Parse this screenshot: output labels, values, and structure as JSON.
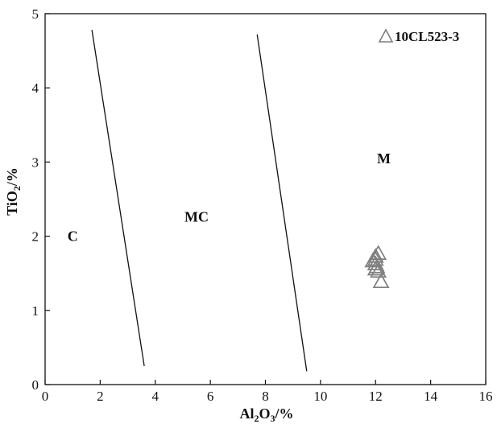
{
  "chart_data": {
    "type": "scatter",
    "title": "",
    "xlabel": {
      "base": "Al",
      "sub1": "2",
      "mid": "O",
      "sub2": "3",
      "suffix": "/%"
    },
    "ylabel": {
      "base": "TiO",
      "sub": "2",
      "suffix": "/%"
    },
    "xlim": [
      0,
      16
    ],
    "ylim": [
      0,
      5
    ],
    "xticks": [
      "0",
      "2",
      "4",
      "6",
      "8",
      "10",
      "12",
      "14",
      "16"
    ],
    "yticks": [
      "0",
      "1",
      "2",
      "3",
      "4",
      "5"
    ],
    "grid": false,
    "legend_position": "top-right",
    "series": [
      {
        "name": "10CL523-3",
        "marker": "open-triangle",
        "color": "#7f7f7f",
        "points": [
          [
            12.0,
            1.72
          ],
          [
            12.1,
            1.76
          ],
          [
            12.0,
            1.68
          ],
          [
            11.9,
            1.66
          ],
          [
            12.0,
            1.62
          ],
          [
            12.05,
            1.58
          ],
          [
            12.0,
            1.55
          ],
          [
            12.1,
            1.52
          ],
          [
            12.2,
            1.38
          ]
        ]
      }
    ],
    "boundary_lines": [
      {
        "from": [
          1.7,
          4.78
        ],
        "to": [
          3.6,
          0.25
        ]
      },
      {
        "from": [
          7.7,
          4.72
        ],
        "to": [
          9.5,
          0.18
        ]
      }
    ],
    "region_labels": [
      {
        "text": "C",
        "x": 1.0,
        "y": 2.0
      },
      {
        "text": "MC",
        "x": 5.5,
        "y": 2.26
      },
      {
        "text": "M",
        "x": 12.3,
        "y": 3.05
      }
    ]
  }
}
